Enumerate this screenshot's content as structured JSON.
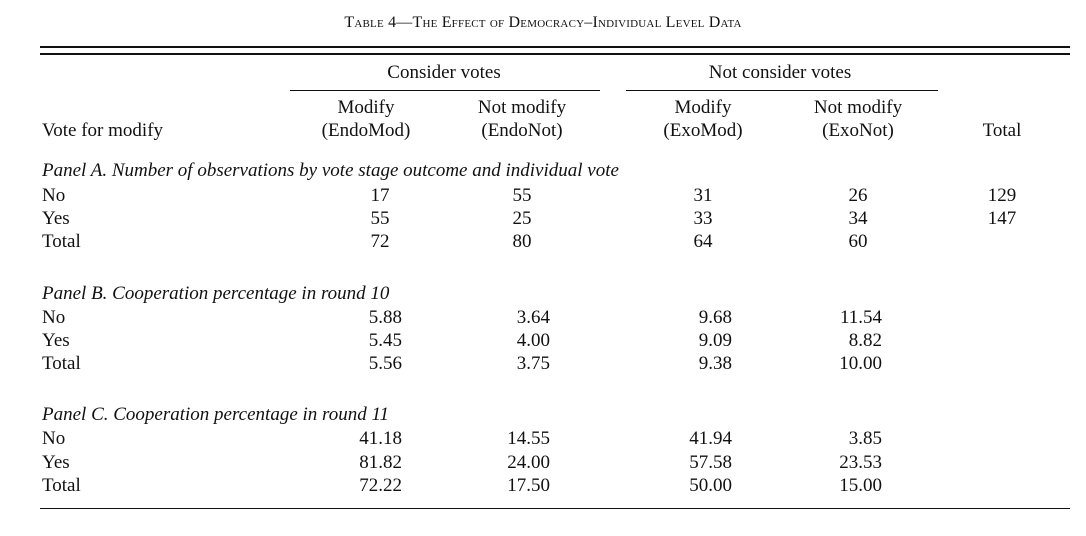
{
  "title": "Table 4—The Effect of Democracy–Individual Level Data",
  "header": {
    "group_left": "Consider votes",
    "group_right": "Not consider votes",
    "stub_label": "Vote for modify",
    "cols": [
      {
        "line1": "Modify",
        "line2": "(EndoMod)"
      },
      {
        "line1": "Not modify",
        "line2": "(EndoNot)"
      },
      {
        "line1": "Modify",
        "line2": "(ExoMod)"
      },
      {
        "line1": "Not modify",
        "line2": "(ExoNot)"
      },
      {
        "line1": "",
        "line2": "Total"
      }
    ]
  },
  "panels": [
    {
      "title": "Panel A. Number of observations by vote stage outcome and individual vote",
      "rows": [
        {
          "label": "No",
          "values": [
            "17",
            "55",
            "31",
            "26",
            "129"
          ]
        },
        {
          "label": "Yes",
          "values": [
            "55",
            "25",
            "33",
            "34",
            "147"
          ]
        },
        {
          "label": "Total",
          "values": [
            "72",
            "80",
            "64",
            "60",
            ""
          ]
        }
      ]
    },
    {
      "title": "Panel B. Cooperation percentage in round 10",
      "rows": [
        {
          "label": "No",
          "values": [
            "5.88",
            "3.64",
            "9.68",
            "11.54",
            ""
          ]
        },
        {
          "label": "Yes",
          "values": [
            "5.45",
            "4.00",
            "9.09",
            "8.82",
            ""
          ]
        },
        {
          "label": "Total",
          "values": [
            "5.56",
            "3.75",
            "9.38",
            "10.00",
            ""
          ]
        }
      ]
    },
    {
      "title": "Panel C. Cooperation percentage in round 11",
      "rows": [
        {
          "label": "No",
          "values": [
            "41.18",
            "14.55",
            "41.94",
            "3.85",
            ""
          ]
        },
        {
          "label": "Yes",
          "values": [
            "81.82",
            "24.00",
            "57.58",
            "23.53",
            ""
          ]
        },
        {
          "label": "Total",
          "values": [
            "72.22",
            "17.50",
            "50.00",
            "15.00",
            ""
          ]
        }
      ]
    }
  ]
}
